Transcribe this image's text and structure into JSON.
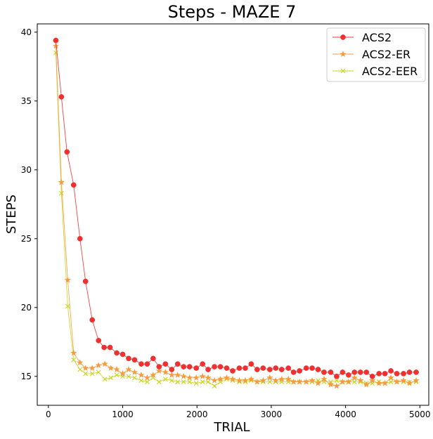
{
  "chart_data": {
    "type": "line",
    "title": "Steps - MAZE 7",
    "xlabel": "TRIAL",
    "ylabel": "STEPS",
    "xlim": [
      -150,
      5120
    ],
    "ylim": [
      12.9,
      40.6
    ],
    "xticks": [
      0,
      1000,
      2000,
      3000,
      4000,
      5000
    ],
    "yticks": [
      15,
      20,
      25,
      30,
      35,
      40
    ],
    "grid": false,
    "legend_position": "top-right",
    "series": [
      {
        "name": "ACS2",
        "color": "#f03030",
        "marker": "circle",
        "x": [
          100,
          175,
          250,
          340,
          425,
          500,
          590,
          675,
          750,
          830,
          920,
          1000,
          1080,
          1160,
          1250,
          1330,
          1410,
          1490,
          1575,
          1660,
          1740,
          1820,
          1900,
          1990,
          2075,
          2150,
          2235,
          2315,
          2400,
          2480,
          2570,
          2650,
          2730,
          2810,
          2890,
          2980,
          3060,
          3140,
          3230,
          3300,
          3380,
          3470,
          3550,
          3630,
          3710,
          3800,
          3880,
          3960,
          4040,
          4120,
          4200,
          4280,
          4360,
          4450,
          4530,
          4610,
          4690,
          4780,
          4860,
          4950
        ],
        "y": [
          39.4,
          35.3,
          31.3,
          28.9,
          25.0,
          21.9,
          19.1,
          17.6,
          17.1,
          17.1,
          16.7,
          16.6,
          16.3,
          16.2,
          15.9,
          15.9,
          16.3,
          15.7,
          15.9,
          15.5,
          15.9,
          15.7,
          15.7,
          15.6,
          15.9,
          15.5,
          15.7,
          15.7,
          15.6,
          15.4,
          15.6,
          15.6,
          15.9,
          15.5,
          15.6,
          15.5,
          15.6,
          15.5,
          15.6,
          15.3,
          15.4,
          15.6,
          15.6,
          15.5,
          15.3,
          15.3,
          15.0,
          15.3,
          15.1,
          15.3,
          15.3,
          15.3,
          15.0,
          15.2,
          15.2,
          15.4,
          15.2,
          15.2,
          15.3,
          15.3
        ]
      },
      {
        "name": "ACS2-ER",
        "color": "#f59c40",
        "marker": "star",
        "x": [
          100,
          175,
          260,
          340,
          425,
          500,
          590,
          675,
          760,
          840,
          920,
          1000,
          1080,
          1160,
          1250,
          1330,
          1410,
          1490,
          1575,
          1660,
          1740,
          1820,
          1900,
          1990,
          2075,
          2150,
          2235,
          2315,
          2400,
          2480,
          2570,
          2650,
          2730,
          2810,
          2890,
          2980,
          3060,
          3140,
          3230,
          3300,
          3380,
          3470,
          3550,
          3630,
          3710,
          3800,
          3880,
          3960,
          4040,
          4120,
          4200,
          4280,
          4360,
          4450,
          4530,
          4610,
          4690,
          4780,
          4860,
          4950
        ],
        "y": [
          39.0,
          29.1,
          22.0,
          16.7,
          16.0,
          15.6,
          15.6,
          15.8,
          15.9,
          15.6,
          15.5,
          15.2,
          15.5,
          15.3,
          15.1,
          14.9,
          15.1,
          15.4,
          15.3,
          15.1,
          15.1,
          15.0,
          14.9,
          14.9,
          15.0,
          14.9,
          14.7,
          14.8,
          14.9,
          14.8,
          14.7,
          14.7,
          14.8,
          14.6,
          14.7,
          14.9,
          14.7,
          14.8,
          14.8,
          14.6,
          14.6,
          14.6,
          14.7,
          14.5,
          14.8,
          14.4,
          14.3,
          14.6,
          14.6,
          14.9,
          14.7,
          14.4,
          14.7,
          14.5,
          14.5,
          14.9,
          14.6,
          14.7,
          14.5,
          14.7
        ]
      },
      {
        "name": "ACS2-EER",
        "color": "#c8d61a",
        "marker": "x",
        "x": [
          100,
          175,
          260,
          340,
          425,
          500,
          590,
          675,
          760,
          840,
          920,
          1000,
          1080,
          1160,
          1250,
          1330,
          1410,
          1490,
          1575,
          1660,
          1740,
          1820,
          1900,
          1990,
          2075,
          2150,
          2235,
          2315,
          2400,
          2480,
          2570,
          2650,
          2730,
          2810,
          2890,
          2980,
          3060,
          3140,
          3230,
          3300,
          3380,
          3470,
          3550,
          3630,
          3710,
          3800,
          3880,
          3960,
          4040,
          4120,
          4200,
          4280,
          4360,
          4450,
          4530,
          4610,
          4690,
          4780,
          4860,
          4950
        ],
        "y": [
          38.5,
          28.3,
          20.1,
          16.2,
          15.5,
          15.2,
          15.2,
          15.3,
          14.8,
          14.9,
          15.1,
          15.0,
          15.0,
          14.9,
          14.7,
          14.6,
          14.9,
          14.6,
          14.8,
          14.7,
          14.6,
          14.6,
          14.6,
          14.5,
          14.6,
          14.6,
          14.3,
          14.6,
          14.8,
          14.7,
          14.6,
          14.6,
          14.7,
          14.6,
          14.6,
          14.6,
          14.6,
          14.6,
          14.6,
          14.6,
          14.6,
          14.6,
          14.6,
          14.7,
          14.6,
          14.6,
          14.7,
          14.6,
          14.6,
          14.6,
          14.6,
          14.5,
          14.5,
          14.6,
          14.5,
          14.6,
          14.6,
          14.6,
          14.6,
          14.6
        ]
      }
    ]
  }
}
